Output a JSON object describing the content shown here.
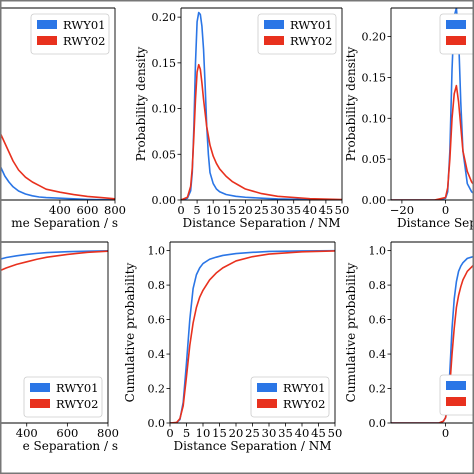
{
  "legend": {
    "entries": [
      {
        "name": "RWY01",
        "color": "#2b76e6"
      },
      {
        "name": "RWY02",
        "color": "#e8311e"
      }
    ]
  },
  "chart_data": [
    {
      "id": "top-left",
      "type": "line",
      "panel_type": "probability density",
      "xlabel": "me Separation / s",
      "ylabel": "",
      "xlim": [
        -180,
        800
      ],
      "ylim": [
        0,
        0.0032
      ],
      "xticks": [
        400,
        600,
        800
      ],
      "yticks": [],
      "legend": true,
      "legend_position": "top-right",
      "series": [
        {
          "name": "RWY01",
          "color": "#2b76e6",
          "x": [
            -180,
            -100,
            -60,
            -40,
            -20,
            0,
            30,
            60,
            100,
            150,
            200,
            250,
            300,
            400,
            500,
            600,
            700,
            800
          ],
          "y": [
            0.0006,
            0.001,
            0.00075,
            0.0006,
            0.0005,
            0.0004,
            0.0003,
            0.00022,
            0.00015,
            0.0001,
            7e-05,
            5e-05,
            4e-05,
            3e-05,
            2e-05,
            1e-05,
            5e-06,
            3e-06
          ]
        },
        {
          "name": "RWY02",
          "color": "#e8311e",
          "x": [
            -180,
            -100,
            -60,
            -40,
            -20,
            0,
            30,
            60,
            100,
            150,
            200,
            250,
            300,
            400,
            500,
            600,
            700,
            800
          ],
          "y": [
            0.0012,
            0.0013,
            0.0012,
            0.00115,
            0.00105,
            0.00095,
            0.0008,
            0.00065,
            0.0005,
            0.00038,
            0.0003,
            0.00024,
            0.00018,
            0.00013,
            9e-05,
            6e-05,
            4e-05,
            2e-05
          ]
        }
      ]
    },
    {
      "id": "top-middle",
      "type": "line",
      "panel_type": "probability density",
      "xlabel": "Distance Separation / NM",
      "ylabel": "Probability density",
      "xlim": [
        0,
        50
      ],
      "ylim": [
        0,
        0.21
      ],
      "xticks": [
        0,
        5,
        10,
        15,
        20,
        25,
        30,
        35,
        40,
        45,
        50
      ],
      "yticks": [
        0.0,
        0.05,
        0.1,
        0.15,
        0.2
      ],
      "ytick_labels": [
        "0.00",
        "0.05",
        "0.10",
        "0.15",
        "0.20"
      ],
      "legend": true,
      "legend_position": "top-right",
      "series": [
        {
          "name": "RWY01",
          "color": "#2b76e6",
          "x": [
            0,
            2,
            3,
            3.5,
            4,
            4.5,
            5,
            5.5,
            6,
            6.5,
            7,
            7.5,
            8,
            8.5,
            9,
            10,
            11,
            12,
            14,
            17,
            20,
            25,
            30,
            40,
            50
          ],
          "y": [
            0,
            0.002,
            0.01,
            0.03,
            0.08,
            0.15,
            0.195,
            0.205,
            0.203,
            0.19,
            0.165,
            0.125,
            0.08,
            0.05,
            0.03,
            0.018,
            0.012,
            0.009,
            0.006,
            0.004,
            0.003,
            0.002,
            0.0012,
            0.0005,
            0.0002
          ]
        },
        {
          "name": "RWY02",
          "color": "#e8311e",
          "x": [
            0,
            2,
            3,
            3.5,
            4,
            4.5,
            5,
            5.5,
            6,
            6.5,
            7,
            8,
            9,
            10,
            11,
            12,
            14,
            16,
            18,
            20,
            25,
            30,
            40,
            50
          ],
          "y": [
            0,
            0.003,
            0.015,
            0.035,
            0.07,
            0.11,
            0.14,
            0.148,
            0.143,
            0.128,
            0.11,
            0.08,
            0.06,
            0.048,
            0.04,
            0.034,
            0.026,
            0.02,
            0.016,
            0.012,
            0.007,
            0.004,
            0.0015,
            0.0005
          ]
        }
      ]
    },
    {
      "id": "top-right",
      "type": "line",
      "panel_type": "probability density",
      "xlabel": "Distance Sep",
      "ylabel": "Probability density",
      "xlim": [
        -25,
        25
      ],
      "ylim": [
        0,
        0.235
      ],
      "xticks": [
        -20,
        0
      ],
      "xtick_labels": [
        "−20",
        "0"
      ],
      "yticks": [
        0.0,
        0.05,
        0.1,
        0.15,
        0.2
      ],
      "ytick_labels": [
        "0.00",
        "0.05",
        "0.10",
        "0.15",
        "0.20"
      ],
      "legend": true,
      "legend_position": "top-right",
      "series": [
        {
          "name": "RWY01",
          "color": "#2b76e6",
          "x": [
            -25,
            -5,
            0,
            1,
            2,
            3,
            4,
            5,
            6,
            7,
            8,
            10,
            12,
            14
          ],
          "y": [
            0,
            0,
            0.002,
            0.01,
            0.06,
            0.16,
            0.225,
            0.235,
            0.2,
            0.12,
            0.06,
            0.02,
            0.01,
            0.006
          ]
        },
        {
          "name": "RWY02",
          "color": "#e8311e",
          "x": [
            -25,
            -5,
            0,
            1,
            2,
            3,
            4,
            5,
            6,
            7,
            8,
            10,
            12,
            14
          ],
          "y": [
            0,
            0,
            0.003,
            0.015,
            0.05,
            0.1,
            0.13,
            0.14,
            0.12,
            0.09,
            0.06,
            0.035,
            0.022,
            0.015
          ]
        }
      ]
    },
    {
      "id": "bottom-left",
      "type": "line",
      "panel_type": "cumulative probability",
      "xlabel": "e Separation / s",
      "ylabel": "",
      "xlim": [
        170,
        800
      ],
      "ylim": [
        0,
        1.05
      ],
      "xticks": [
        400,
        600,
        800
      ],
      "yticks": [],
      "legend": true,
      "legend_position": "bottom-right",
      "series": [
        {
          "name": "RWY01",
          "color": "#2b76e6",
          "x": [
            170,
            200,
            250,
            300,
            350,
            400,
            450,
            500,
            600,
            700,
            800
          ],
          "y": [
            0.9,
            0.925,
            0.945,
            0.96,
            0.97,
            0.978,
            0.984,
            0.989,
            0.994,
            0.997,
            0.999
          ]
        },
        {
          "name": "RWY02",
          "color": "#e8311e",
          "x": [
            170,
            200,
            250,
            300,
            350,
            400,
            450,
            500,
            600,
            700,
            800
          ],
          "y": [
            0.8,
            0.84,
            0.875,
            0.9,
            0.92,
            0.935,
            0.95,
            0.962,
            0.978,
            0.99,
            0.997
          ]
        }
      ]
    },
    {
      "id": "bottom-middle",
      "type": "line",
      "panel_type": "cumulative probability",
      "xlabel": "Distance Separation / NM",
      "ylabel": "Cumulative probability",
      "xlim": [
        0,
        50
      ],
      "ylim": [
        0,
        1.05
      ],
      "xticks": [
        0,
        5,
        10,
        15,
        20,
        25,
        30,
        35,
        40,
        45,
        50
      ],
      "yticks": [
        0.0,
        0.2,
        0.4,
        0.6,
        0.8,
        1.0
      ],
      "ytick_labels": [
        "0.0",
        "0.2",
        "0.4",
        "0.6",
        "0.8",
        "1.0"
      ],
      "legend": true,
      "legend_position": "bottom-right",
      "series": [
        {
          "name": "RWY01",
          "color": "#2b76e6",
          "x": [
            0,
            2,
            3,
            4,
            5,
            6,
            7,
            8,
            9,
            10,
            12,
            14,
            16,
            20,
            25,
            30,
            40,
            50
          ],
          "y": [
            0,
            0.002,
            0.02,
            0.12,
            0.35,
            0.6,
            0.78,
            0.86,
            0.9,
            0.925,
            0.95,
            0.962,
            0.972,
            0.983,
            0.99,
            0.995,
            0.998,
            1.0
          ]
        },
        {
          "name": "RWY02",
          "color": "#e8311e",
          "x": [
            0,
            2,
            3,
            4,
            5,
            6,
            7,
            8,
            9,
            10,
            12,
            14,
            16,
            20,
            25,
            30,
            40,
            50
          ],
          "y": [
            0,
            0.003,
            0.025,
            0.1,
            0.27,
            0.45,
            0.58,
            0.67,
            0.73,
            0.77,
            0.83,
            0.87,
            0.9,
            0.94,
            0.965,
            0.98,
            0.993,
            0.998
          ]
        }
      ]
    },
    {
      "id": "bottom-right",
      "type": "line",
      "panel_type": "cumulative probability",
      "xlabel": "",
      "ylabel": "Cumulative probability",
      "xlim": [
        -25,
        25
      ],
      "ylim": [
        0,
        1.05
      ],
      "xticks": [
        0
      ],
      "xtick_labels": [
        "0"
      ],
      "yticks": [
        0.0,
        0.2,
        0.4,
        0.6,
        0.8,
        1.0
      ],
      "ytick_labels": [
        "0.0",
        "0.2",
        "0.4",
        "0.6",
        "0.8",
        "1.0"
      ],
      "legend": true,
      "legend_position": "bottom-right",
      "series": [
        {
          "name": "RWY01",
          "color": "#2b76e6",
          "x": [
            -25,
            -3,
            -1,
            0,
            1,
            2,
            3,
            4,
            5,
            6,
            7,
            8,
            10,
            14
          ],
          "y": [
            0,
            0,
            0.01,
            0.03,
            0.1,
            0.3,
            0.55,
            0.72,
            0.82,
            0.88,
            0.91,
            0.93,
            0.955,
            0.97
          ]
        },
        {
          "name": "RWY02",
          "color": "#e8311e",
          "x": [
            -25,
            -3,
            -1,
            0,
            1,
            2,
            3,
            4,
            5,
            6,
            7,
            8,
            10,
            14
          ],
          "y": [
            0,
            0,
            0.01,
            0.03,
            0.09,
            0.22,
            0.4,
            0.55,
            0.67,
            0.74,
            0.79,
            0.83,
            0.88,
            0.93
          ]
        }
      ]
    }
  ]
}
